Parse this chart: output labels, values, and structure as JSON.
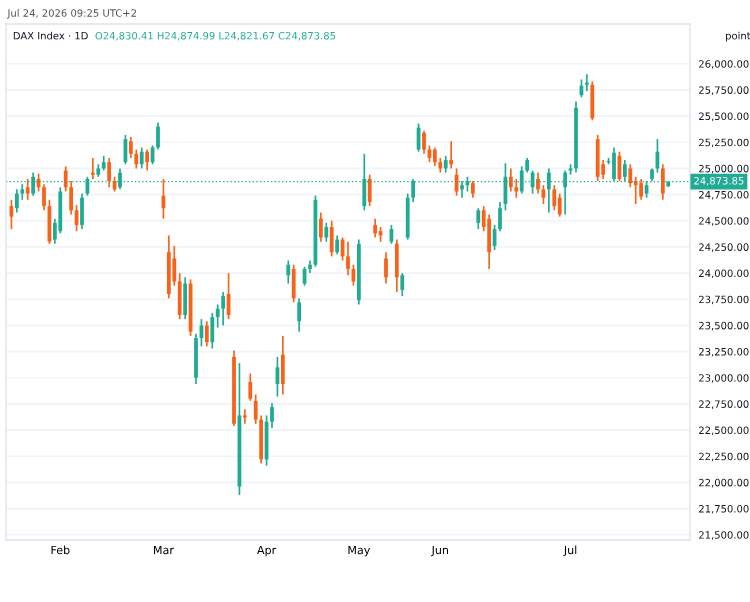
{
  "chart_data": {
    "type": "candlestick",
    "title": "DAX Index · 1D",
    "subtitle": "O24,830.41 H24,874.99 L24,821.67 C24,873.85",
    "ylabel": "point",
    "annotations": [
      "Jul 24, 2026 09:25 UTC+2"
    ],
    "categories": [
      null,
      null,
      null,
      null,
      null,
      null,
      null,
      null,
      null,
      "Feb",
      null,
      null,
      null,
      null,
      null,
      null,
      null,
      null,
      null,
      null,
      null,
      null,
      null,
      null,
      null,
      null,
      null,
      null,
      "Mar",
      null,
      null,
      null,
      null,
      null,
      null,
      null,
      null,
      null,
      null,
      null,
      null,
      null,
      null,
      null,
      null,
      null,
      null,
      "Apr",
      null,
      null,
      null,
      null,
      null,
      null,
      null,
      null,
      null,
      null,
      null,
      null,
      null,
      null,
      null,
      null,
      "May",
      null,
      null,
      null,
      null,
      null,
      null,
      null,
      null,
      null,
      null,
      null,
      null,
      null,
      null,
      "Jun",
      null,
      null,
      null,
      null,
      null,
      null,
      null,
      null,
      null,
      null,
      null,
      null,
      null,
      null,
      null,
      null,
      null,
      null,
      null,
      null,
      null,
      null,
      null,
      "Jul",
      null,
      null,
      null,
      null,
      null,
      null,
      null,
      null,
      null,
      null,
      null,
      null,
      null,
      null,
      null,
      null,
      null,
      null
    ],
    "ohlc": [
      [
        24640,
        24700,
        24420,
        24540
      ],
      [
        24620,
        24800,
        24580,
        24760
      ],
      [
        24760,
        24850,
        24700,
        24800
      ],
      [
        24820,
        24900,
        24700,
        24760
      ],
      [
        24760,
        24960,
        24740,
        24920
      ],
      [
        24900,
        24950,
        24780,
        24820
      ],
      [
        24820,
        24850,
        24600,
        24640
      ],
      [
        24640,
        24700,
        24280,
        24300
      ],
      [
        24320,
        24520,
        24280,
        24480
      ],
      [
        24400,
        24820,
        24380,
        24780
      ],
      [
        24980,
        25020,
        24780,
        24820
      ],
      [
        24820,
        24880,
        24560,
        24600
      ],
      [
        24600,
        24650,
        24400,
        24460
      ],
      [
        24460,
        24760,
        24420,
        24720
      ],
      [
        24760,
        24920,
        24740,
        24900
      ],
      [
        24960,
        25100,
        24900,
        24940
      ],
      [
        24940,
        25040,
        24920,
        25000
      ],
      [
        25000,
        25120,
        24980,
        25060
      ],
      [
        25060,
        25100,
        24820,
        24880
      ],
      [
        24880,
        24920,
        24780,
        24800
      ],
      [
        24820,
        25000,
        24800,
        24960
      ],
      [
        25060,
        25320,
        25040,
        25280
      ],
      [
        25260,
        25300,
        25100,
        25140
      ],
      [
        25140,
        25180,
        25000,
        25040
      ],
      [
        25040,
        25200,
        25000,
        25160
      ],
      [
        25160,
        25180,
        24980,
        25060
      ],
      [
        25060,
        25220,
        25040,
        25200
      ],
      [
        25200,
        25440,
        25180,
        25400
      ],
      [
        24740,
        24900,
        24520,
        24620
      ],
      [
        24200,
        24360,
        23760,
        23800
      ],
      [
        24140,
        24260,
        23880,
        23920
      ],
      [
        23920,
        24000,
        23560,
        23600
      ],
      [
        23600,
        23960,
        23560,
        23900
      ],
      [
        23900,
        23940,
        23400,
        23440
      ],
      [
        23000,
        23420,
        22940,
        23380
      ],
      [
        23380,
        23560,
        23300,
        23500
      ],
      [
        23500,
        23540,
        23300,
        23340
      ],
      [
        23340,
        23620,
        23280,
        23580
      ],
      [
        23580,
        23700,
        23480,
        23660
      ],
      [
        23660,
        23820,
        23500,
        23780
      ],
      [
        23800,
        24000,
        23560,
        23600
      ],
      [
        23200,
        23260,
        22540,
        22560
      ],
      [
        21960,
        23140,
        21880,
        22640
      ],
      [
        22640,
        22700,
        22560,
        22620
      ],
      [
        22960,
        23040,
        22780,
        22800
      ],
      [
        22780,
        22840,
        22560,
        22600
      ],
      [
        22600,
        22640,
        22180,
        22220
      ],
      [
        22220,
        22640,
        22160,
        22580
      ],
      [
        22580,
        22760,
        22520,
        22720
      ],
      [
        22940,
        23200,
        22820,
        23100
      ],
      [
        23220,
        23400,
        22840,
        22940
      ],
      [
        23980,
        24120,
        23900,
        24080
      ],
      [
        24040,
        24080,
        23720,
        23760
      ],
      [
        23540,
        23760,
        23440,
        23720
      ],
      [
        23900,
        24060,
        23880,
        24040
      ],
      [
        24040,
        24120,
        24000,
        24080
      ],
      [
        24080,
        24740,
        24060,
        24700
      ],
      [
        24520,
        24580,
        24300,
        24340
      ],
      [
        24340,
        24480,
        24300,
        24440
      ],
      [
        24440,
        24500,
        24160,
        24200
      ],
      [
        24200,
        24360,
        24180,
        24320
      ],
      [
        24320,
        24340,
        24120,
        24160
      ],
      [
        24160,
        24300,
        23980,
        24040
      ],
      [
        24040,
        24080,
        23880,
        23920
      ],
      [
        23740,
        24320,
        23700,
        24280
      ],
      [
        24640,
        25140,
        24600,
        24900
      ],
      [
        24900,
        24940,
        24640,
        24680
      ],
      [
        24460,
        24520,
        24340,
        24380
      ],
      [
        24400,
        24440,
        24300,
        24360
      ],
      [
        24140,
        24200,
        23900,
        23960
      ],
      [
        24300,
        24460,
        24280,
        24420
      ],
      [
        24280,
        24320,
        23820,
        23960
      ],
      [
        23840,
        24000,
        23780,
        23980
      ],
      [
        24340,
        24760,
        24320,
        24720
      ],
      [
        24720,
        24900,
        24680,
        24880
      ],
      [
        25180,
        25430,
        25160,
        25390
      ],
      [
        25340,
        25360,
        25140,
        25180
      ],
      [
        25180,
        25220,
        25060,
        25100
      ],
      [
        25180,
        25200,
        25020,
        25060
      ],
      [
        25060,
        25100,
        24960,
        25000
      ],
      [
        25000,
        25120,
        24960,
        25080
      ],
      [
        25080,
        25260,
        25000,
        25040
      ],
      [
        24940,
        25000,
        24740,
        24780
      ],
      [
        24800,
        24880,
        24720,
        24840
      ],
      [
        24840,
        24920,
        24780,
        24880
      ],
      [
        24860,
        24880,
        24720,
        24760
      ],
      [
        24480,
        24620,
        24420,
        24600
      ],
      [
        24600,
        24640,
        24400,
        24440
      ],
      [
        24520,
        24560,
        24040,
        24200
      ],
      [
        24260,
        24460,
        24220,
        24420
      ],
      [
        24420,
        24680,
        24400,
        24620
      ],
      [
        24660,
        25050,
        24600,
        24920
      ],
      [
        24920,
        25000,
        24780,
        24820
      ],
      [
        24820,
        24900,
        24720,
        24780
      ],
      [
        24780,
        25020,
        24760,
        24980
      ],
      [
        24980,
        25100,
        24960,
        25080
      ],
      [
        24820,
        24980,
        24760,
        24960
      ],
      [
        24900,
        24960,
        24760,
        24800
      ],
      [
        24800,
        24840,
        24660,
        24720
      ],
      [
        24800,
        25000,
        24580,
        24960
      ],
      [
        24800,
        24840,
        24600,
        24640
      ],
      [
        24720,
        24760,
        24540,
        24560
      ],
      [
        24820,
        24980,
        24560,
        24960
      ],
      [
        24980,
        25040,
        24940,
        25000
      ],
      [
        25000,
        25640,
        24960,
        25580
      ],
      [
        25700,
        25850,
        25680,
        25790
      ],
      [
        25800,
        25900,
        25740,
        25820
      ],
      [
        25800,
        25830,
        25460,
        25480
      ],
      [
        25280,
        25320,
        24880,
        24920
      ],
      [
        25040,
        25080,
        24900,
        24940
      ],
      [
        25060,
        25100,
        25040,
        25070
      ],
      [
        24900,
        25200,
        24880,
        25150
      ],
      [
        25120,
        25160,
        24880,
        24900
      ],
      [
        24920,
        25080,
        24880,
        25040
      ],
      [
        25000,
        25040,
        24820,
        24860
      ],
      [
        24880,
        24920,
        24660,
        24840
      ],
      [
        24860,
        24900,
        24700,
        24730
      ],
      [
        24760,
        24880,
        24720,
        24840
      ],
      [
        24900,
        25000,
        24880,
        24990
      ],
      [
        25000,
        25280,
        24960,
        25160
      ],
      [
        25000,
        25040,
        24700,
        24760
      ],
      [
        24830.41,
        24874.99,
        24821.67,
        24873.85
      ]
    ],
    "colors": [
      "#f7631b",
      "#22ab94",
      "#22ab94",
      "#f7631b",
      "#22ab94",
      "#f7631b",
      "#f7631b",
      "#f7631b",
      "#22ab94",
      "#22ab94",
      "#f7631b",
      "#f7631b",
      "#f7631b",
      "#22ab94",
      "#22ab94",
      "#f7631b",
      "#22ab94",
      "#22ab94",
      "#f7631b",
      "#f7631b",
      "#22ab94",
      "#22ab94",
      "#f7631b",
      "#f7631b",
      "#22ab94",
      "#f7631b",
      "#22ab94",
      "#22ab94",
      "#f7631b",
      "#f7631b",
      "#f7631b",
      "#f7631b",
      "#22ab94",
      "#f7631b",
      "#22ab94",
      "#22ab94",
      "#f7631b",
      "#22ab94",
      "#22ab94",
      "#22ab94",
      "#f7631b",
      "#f7631b",
      "#22ab94",
      "#f7631b",
      "#f7631b",
      "#f7631b",
      "#f7631b",
      "#22ab94",
      "#22ab94",
      "#22ab94",
      "#f7631b",
      "#22ab94",
      "#f7631b",
      "#22ab94",
      "#22ab94",
      "#22ab94",
      "#22ab94",
      "#f7631b",
      "#22ab94",
      "#f7631b",
      "#22ab94",
      "#f7631b",
      "#f7631b",
      "#f7631b",
      "#22ab94",
      "#22ab94",
      "#f7631b",
      "#f7631b",
      "#f7631b",
      "#f7631b",
      "#22ab94",
      "#f7631b",
      "#22ab94",
      "#22ab94",
      "#22ab94",
      "#22ab94",
      "#f7631b",
      "#f7631b",
      "#f7631b",
      "#f7631b",
      "#22ab94",
      "#f7631b",
      "#f7631b",
      "#22ab94",
      "#22ab94",
      "#f7631b",
      "#22ab94",
      "#f7631b",
      "#f7631b",
      "#22ab94",
      "#22ab94",
      "#22ab94",
      "#f7631b",
      "#f7631b",
      "#22ab94",
      "#22ab94",
      "#22ab94",
      "#f7631b",
      "#f7631b",
      "#22ab94",
      "#f7631b",
      "#f7631b",
      "#22ab94",
      "#22ab94",
      "#22ab94",
      "#22ab94",
      "#22ab94",
      "#f7631b",
      "#f7631b",
      "#f7631b",
      "#22ab94",
      "#22ab94",
      "#f7631b",
      "#22ab94",
      "#f7631b",
      "#f7631b",
      "#f7631b",
      "#22ab94",
      "#22ab94",
      "#22ab94",
      "#f7631b",
      "#22ab94"
    ],
    "ylim": [
      21450,
      26380
    ],
    "yticks": [
      {
        "value": 21500,
        "label": "21,500.00"
      },
      {
        "value": 21750,
        "label": "21,750.00"
      },
      {
        "value": 22000,
        "label": "22,000.00"
      },
      {
        "value": 22250,
        "label": "22,250.00"
      },
      {
        "value": 22500,
        "label": "22,500.00"
      },
      {
        "value": 22750,
        "label": "22,750.00"
      },
      {
        "value": 23000,
        "label": "23,000.00"
      },
      {
        "value": 23250,
        "label": "23,250.00"
      },
      {
        "value": 23500,
        "label": "23,500.00"
      },
      {
        "value": 23750,
        "label": "23,750.00"
      },
      {
        "value": 24000,
        "label": "24,000.00"
      },
      {
        "value": 24250,
        "label": "24,250.00"
      },
      {
        "value": 24500,
        "label": "24,500.00"
      },
      {
        "value": 24750,
        "label": "24,750.00"
      },
      {
        "value": 25000,
        "label": "25,000.00"
      },
      {
        "value": 25250,
        "label": "25,250.00"
      },
      {
        "value": 25500,
        "label": "25,500.00"
      },
      {
        "value": 25750,
        "label": "25,750.00"
      },
      {
        "value": 26000,
        "label": "26,000.00"
      }
    ],
    "ref_lines": [
      {
        "axis": "y",
        "value": 24873.85,
        "label": "24,873.85",
        "color": "#22ab94",
        "line_style": "dotted"
      }
    ],
    "grid": "y",
    "legend": false
  }
}
